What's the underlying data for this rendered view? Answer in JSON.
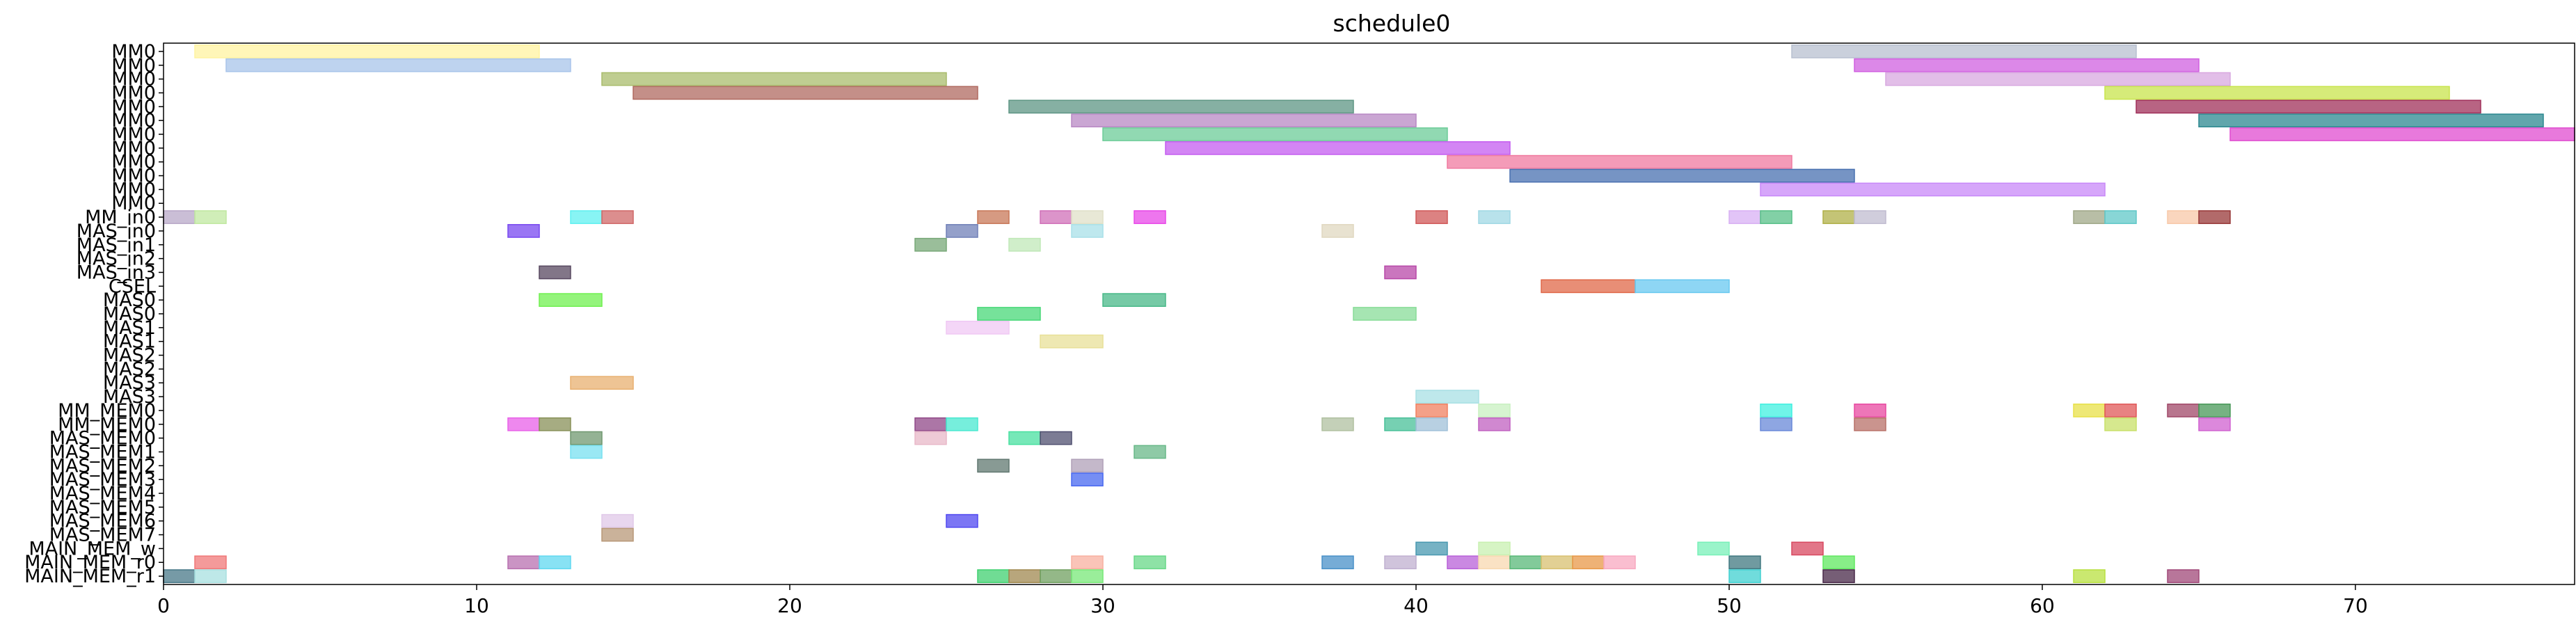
{
  "chart_data": {
    "type": "gantt",
    "title": "schedule0",
    "xlim": [
      0,
      77
    ],
    "x_ticks": [
      0,
      10,
      20,
      30,
      40,
      50,
      60,
      70
    ],
    "grid": false,
    "rows": [
      "MM0",
      "MM0",
      "MM0",
      "MM0",
      "MM0",
      "MM0",
      "MM0",
      "MM0",
      "MM0",
      "MM0",
      "MM0",
      "MM0",
      "MM_in0",
      "MAS_in0",
      "MAS_in1",
      "MAS_in2",
      "MAS_in3",
      "CSEL",
      "MAS0",
      "MAS0",
      "MAS1",
      "MAS1",
      "MAS2",
      "MAS2",
      "MAS3",
      "MAS3",
      "MM_MEM0",
      "MM_MEM0",
      "MAS_MEM0",
      "MAS_MEM1",
      "MAS_MEM2",
      "MAS_MEM3",
      "MAS_MEM4",
      "MAS_MEM5",
      "MAS_MEM6",
      "MAS_MEM7",
      "MAIN_MEM_w",
      "MAIN_MEM_r0",
      "MAIN_MEM_r1"
    ],
    "tasks": [
      {
        "row": 0,
        "start": 1,
        "end": 12,
        "color": "#fff3a0"
      },
      {
        "row": 0,
        "start": 52,
        "end": 63,
        "color": "#b8c0d0"
      },
      {
        "row": 1,
        "start": 2,
        "end": 13,
        "color": "#a8c4ea"
      },
      {
        "row": 1,
        "start": 54,
        "end": 65,
        "color": "#d060e0"
      },
      {
        "row": 2,
        "start": 14,
        "end": 25,
        "color": "#a9bc6c"
      },
      {
        "row": 2,
        "start": 55,
        "end": 66,
        "color": "#d8a8e0"
      },
      {
        "row": 3,
        "start": 15,
        "end": 26,
        "color": "#b06a60"
      },
      {
        "row": 3,
        "start": 62,
        "end": 73,
        "color": "#c8e44c"
      },
      {
        "row": 4,
        "start": 27,
        "end": 38,
        "color": "#5e9684"
      },
      {
        "row": 4,
        "start": 63,
        "end": 74,
        "color": "#a0305a"
      },
      {
        "row": 5,
        "start": 29,
        "end": 40,
        "color": "#b888c4"
      },
      {
        "row": 5,
        "start": 65,
        "end": 76,
        "color": "#2c8890"
      },
      {
        "row": 6,
        "start": 30,
        "end": 41,
        "color": "#6ccc98"
      },
      {
        "row": 6,
        "start": 66,
        "end": 77,
        "color": "#e04cd0"
      },
      {
        "row": 7,
        "start": 32,
        "end": 43,
        "color": "#c45cf0"
      },
      {
        "row": 8,
        "start": 41,
        "end": 52,
        "color": "#f07aa0"
      },
      {
        "row": 9,
        "start": 43,
        "end": 54,
        "color": "#4870b0"
      },
      {
        "row": 10,
        "start": 51,
        "end": 62,
        "color": "#c888f8"
      },
      {
        "row": 12,
        "start": 0,
        "end": 1,
        "color": "#b8a8c8"
      },
      {
        "row": 12,
        "start": 1,
        "end": 2,
        "color": "#c0e8a0"
      },
      {
        "row": 12,
        "start": 13,
        "end": 14,
        "color": "#60f0f0"
      },
      {
        "row": 12,
        "start": 14,
        "end": 15,
        "color": "#d06868"
      },
      {
        "row": 12,
        "start": 26,
        "end": 27,
        "color": "#c87858"
      },
      {
        "row": 12,
        "start": 28,
        "end": 29,
        "color": "#d070b8"
      },
      {
        "row": 12,
        "start": 29,
        "end": 30,
        "color": "#e0e0c8"
      },
      {
        "row": 12,
        "start": 31,
        "end": 32,
        "color": "#e848e8"
      },
      {
        "row": 12,
        "start": 40,
        "end": 41,
        "color": "#d05858"
      },
      {
        "row": 12,
        "start": 42,
        "end": 43,
        "color": "#a0d8e4"
      },
      {
        "row": 12,
        "start": 50,
        "end": 51,
        "color": "#d8b0f4"
      },
      {
        "row": 12,
        "start": 51,
        "end": 52,
        "color": "#58c088"
      },
      {
        "row": 12,
        "start": 53,
        "end": 54,
        "color": "#b0b048"
      },
      {
        "row": 12,
        "start": 54,
        "end": 55,
        "color": "#c0bcd0"
      },
      {
        "row": 12,
        "start": 61,
        "end": 62,
        "color": "#a0a888"
      },
      {
        "row": 12,
        "start": 62,
        "end": 63,
        "color": "#60c8c8"
      },
      {
        "row": 12,
        "start": 64,
        "end": 65,
        "color": "#f8c8a8"
      },
      {
        "row": 12,
        "start": 65,
        "end": 66,
        "color": "#983838"
      },
      {
        "row": 13,
        "start": 11,
        "end": 12,
        "color": "#7848f0"
      },
      {
        "row": 13,
        "start": 25,
        "end": 26,
        "color": "#7080b8"
      },
      {
        "row": 13,
        "start": 29,
        "end": 30,
        "color": "#a8e0e8"
      },
      {
        "row": 13,
        "start": 37,
        "end": 38,
        "color": "#e0d8c0"
      },
      {
        "row": 14,
        "start": 24,
        "end": 25,
        "color": "#78a878"
      },
      {
        "row": 14,
        "start": 27,
        "end": 28,
        "color": "#c0e8b8"
      },
      {
        "row": 16,
        "start": 12,
        "end": 13,
        "color": "#584860"
      },
      {
        "row": 16,
        "start": 39,
        "end": 40,
        "color": "#b848a8"
      },
      {
        "row": 17,
        "start": 44,
        "end": 47,
        "color": "#e06848"
      },
      {
        "row": 17,
        "start": 47,
        "end": 50,
        "color": "#68c8f0"
      },
      {
        "row": 18,
        "start": 12,
        "end": 14,
        "color": "#70f050"
      },
      {
        "row": 18,
        "start": 30,
        "end": 32,
        "color": "#48b888"
      },
      {
        "row": 19,
        "start": 26,
        "end": 28,
        "color": "#48d878"
      },
      {
        "row": 19,
        "start": 38,
        "end": 40,
        "color": "#88dc98"
      },
      {
        "row": 20,
        "start": 25,
        "end": 27,
        "color": "#f0c8f4"
      },
      {
        "row": 21,
        "start": 28,
        "end": 30,
        "color": "#e8e098"
      },
      {
        "row": 24,
        "start": 13,
        "end": 15,
        "color": "#e8b070"
      },
      {
        "row": 25,
        "start": 40,
        "end": 42,
        "color": "#a8e0e4"
      },
      {
        "row": 26,
        "start": 40,
        "end": 41,
        "color": "#f08060"
      },
      {
        "row": 26,
        "start": 42,
        "end": 43,
        "color": "#c8f0c0"
      },
      {
        "row": 26,
        "start": 51,
        "end": 52,
        "color": "#40f0e0"
      },
      {
        "row": 26,
        "start": 54,
        "end": 55,
        "color": "#e848a0"
      },
      {
        "row": 26,
        "start": 61,
        "end": 62,
        "color": "#e8e048"
      },
      {
        "row": 26,
        "start": 62,
        "end": 63,
        "color": "#e05858"
      },
      {
        "row": 26,
        "start": 64,
        "end": 65,
        "color": "#a04868"
      },
      {
        "row": 26,
        "start": 65,
        "end": 66,
        "color": "#489858"
      },
      {
        "row": 27,
        "start": 11,
        "end": 12,
        "color": "#e860e8"
      },
      {
        "row": 27,
        "start": 12,
        "end": 13,
        "color": "#889058"
      },
      {
        "row": 27,
        "start": 24,
        "end": 25,
        "color": "#904888"
      },
      {
        "row": 27,
        "start": 25,
        "end": 26,
        "color": "#48e8d0"
      },
      {
        "row": 27,
        "start": 37,
        "end": 38,
        "color": "#b0c0a0"
      },
      {
        "row": 27,
        "start": 39,
        "end": 40,
        "color": "#48c098"
      },
      {
        "row": 27,
        "start": 40,
        "end": 41,
        "color": "#a0c0d8"
      },
      {
        "row": 27,
        "start": 42,
        "end": 43,
        "color": "#c060c0"
      },
      {
        "row": 27,
        "start": 51,
        "end": 52,
        "color": "#6888d8"
      },
      {
        "row": 27,
        "start": 54,
        "end": 55,
        "color": "#b87068"
      },
      {
        "row": 27,
        "start": 62,
        "end": 63,
        "color": "#c8e068"
      },
      {
        "row": 27,
        "start": 65,
        "end": 66,
        "color": "#d060d0"
      },
      {
        "row": 28,
        "start": 13,
        "end": 14,
        "color": "#709870"
      },
      {
        "row": 28,
        "start": 24,
        "end": 25,
        "color": "#e8b8c8"
      },
      {
        "row": 28,
        "start": 27,
        "end": 28,
        "color": "#48e0a0"
      },
      {
        "row": 28,
        "start": 28,
        "end": 29,
        "color": "#505070"
      },
      {
        "row": 29,
        "start": 13,
        "end": 14,
        "color": "#78e0f0"
      },
      {
        "row": 29,
        "start": 31,
        "end": 32,
        "color": "#68b888"
      },
      {
        "row": 30,
        "start": 26,
        "end": 27,
        "color": "#607870"
      },
      {
        "row": 30,
        "start": 29,
        "end": 30,
        "color": "#b0a0b8"
      },
      {
        "row": 31,
        "start": 29,
        "end": 30,
        "color": "#4868f0"
      },
      {
        "row": 34,
        "start": 14,
        "end": 15,
        "color": "#e0c8e8"
      },
      {
        "row": 34,
        "start": 25,
        "end": 26,
        "color": "#5048f0"
      },
      {
        "row": 35,
        "start": 14,
        "end": 15,
        "color": "#b89878"
      },
      {
        "row": 36,
        "start": 40,
        "end": 41,
        "color": "#4898b0"
      },
      {
        "row": 36,
        "start": 42,
        "end": 43,
        "color": "#c8f0b0"
      },
      {
        "row": 36,
        "start": 49,
        "end": 50,
        "color": "#78f0b8"
      },
      {
        "row": 36,
        "start": 52,
        "end": 53,
        "color": "#d84860"
      },
      {
        "row": 37,
        "start": 1,
        "end": 2,
        "color": "#f07878"
      },
      {
        "row": 37,
        "start": 11,
        "end": 12,
        "color": "#b870b0"
      },
      {
        "row": 37,
        "start": 12,
        "end": 13,
        "color": "#60d8f0"
      },
      {
        "row": 37,
        "start": 29,
        "end": 30,
        "color": "#f8b0a0"
      },
      {
        "row": 37,
        "start": 31,
        "end": 32,
        "color": "#68d888"
      },
      {
        "row": 37,
        "start": 37,
        "end": 38,
        "color": "#4890c8"
      },
      {
        "row": 37,
        "start": 39,
        "end": 40,
        "color": "#c0b0d0"
      },
      {
        "row": 37,
        "start": 41,
        "end": 42,
        "color": "#b860d8"
      },
      {
        "row": 37,
        "start": 42,
        "end": 43,
        "color": "#f8d8b0"
      },
      {
        "row": 37,
        "start": 43,
        "end": 44,
        "color": "#58b878"
      },
      {
        "row": 37,
        "start": 44,
        "end": 45,
        "color": "#d8c070"
      },
      {
        "row": 37,
        "start": 45,
        "end": 46,
        "color": "#e89848"
      },
      {
        "row": 37,
        "start": 46,
        "end": 47,
        "color": "#f8a8c0"
      },
      {
        "row": 37,
        "start": 50,
        "end": 51,
        "color": "#407880"
      },
      {
        "row": 37,
        "start": 53,
        "end": 54,
        "color": "#60e860"
      },
      {
        "row": 38,
        "start": 0,
        "end": 1,
        "color": "#487888"
      },
      {
        "row": 38,
        "start": 1,
        "end": 2,
        "color": "#a8e0e0"
      },
      {
        "row": 38,
        "start": 26,
        "end": 27,
        "color": "#40d070"
      },
      {
        "row": 38,
        "start": 27,
        "end": 28,
        "color": "#a08850"
      },
      {
        "row": 38,
        "start": 28,
        "end": 29,
        "color": "#70a060"
      },
      {
        "row": 38,
        "start": 29,
        "end": 30,
        "color": "#78e878"
      },
      {
        "row": 38,
        "start": 50,
        "end": 51,
        "color": "#40d0d0"
      },
      {
        "row": 38,
        "start": 53,
        "end": 54,
        "color": "#482848"
      },
      {
        "row": 38,
        "start": 61,
        "end": 62,
        "color": "#b8e040"
      },
      {
        "row": 38,
        "start": 64,
        "end": 65,
        "color": "#a04878"
      }
    ]
  }
}
